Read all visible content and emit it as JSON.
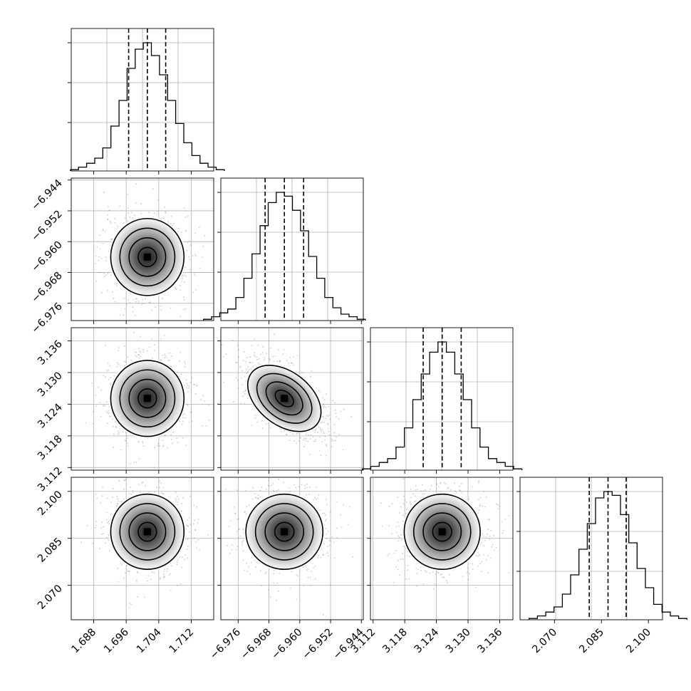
{
  "chart_data": {
    "type": "corner",
    "title": "",
    "parameters": [
      {
        "index": 0,
        "ticks": [
          1.688,
          1.696,
          1.704,
          1.712
        ],
        "tick_labels": [
          "1.688",
          "1.696",
          "1.704",
          "1.712"
        ],
        "range": [
          1.6825,
          1.7175
        ],
        "quantiles": [
          1.6966,
          1.7012,
          1.7057
        ],
        "sigma": 0.0045
      },
      {
        "index": 1,
        "ticks": [
          -6.976,
          -6.968,
          -6.96,
          -6.952,
          -6.944
        ],
        "tick_labels": [
          "−6.976",
          "−6.968",
          "−6.960",
          "−6.952",
          "−6.944"
        ],
        "range": [
          -6.9805,
          -6.9435
        ],
        "quantiles": [
          -6.969,
          -6.964,
          -6.959
        ],
        "sigma": 0.005
      },
      {
        "index": 2,
        "ticks": [
          3.112,
          3.118,
          3.124,
          3.13,
          3.136
        ],
        "tick_labels": [
          "3.112",
          "3.118",
          "3.124",
          "3.130",
          "3.136"
        ],
        "range": [
          3.1115,
          3.1385
        ],
        "quantiles": [
          3.1215,
          3.1251,
          3.1287
        ],
        "sigma": 0.0036
      },
      {
        "index": 3,
        "ticks": [
          2.07,
          2.085,
          2.1
        ],
        "tick_labels": [
          "2.070",
          "2.085",
          "2.100"
        ],
        "range": [
          2.059,
          2.1045
        ],
        "quantiles": [
          2.0811,
          2.0871,
          2.0929
        ],
        "sigma": 0.006
      }
    ],
    "histograms": [
      {
        "param": 0,
        "counts": [
          1,
          3,
          6,
          10,
          18,
          35,
          55,
          80,
          95,
          100,
          90,
          75,
          55,
          37,
          22,
          12,
          6,
          3,
          1
        ]
      },
      {
        "param": 1,
        "counts": [
          1,
          3,
          6,
          9,
          18,
          33,
          52,
          74,
          92,
          100,
          97,
          86,
          70,
          50,
          33,
          18,
          10,
          5,
          3,
          1
        ]
      },
      {
        "param": 2,
        "counts": [
          1,
          3,
          6,
          9,
          18,
          33,
          55,
          75,
          92,
          100,
          92,
          75,
          55,
          33,
          18,
          9,
          6,
          3,
          1
        ]
      },
      {
        "param": 3,
        "counts": [
          1,
          3,
          6,
          10,
          20,
          35,
          55,
          75,
          95,
          100,
          97,
          82,
          60,
          40,
          25,
          12,
          6,
          3,
          1
        ]
      }
    ],
    "pairs": [
      {
        "x": 0,
        "y": 1,
        "correlation": 0.0
      },
      {
        "x": 0,
        "y": 2,
        "correlation": 0.0
      },
      {
        "x": 1,
        "y": 2,
        "correlation": -0.6
      },
      {
        "x": 0,
        "y": 3,
        "correlation": 0.0
      },
      {
        "x": 1,
        "y": 3,
        "correlation": 0.0
      },
      {
        "x": 2,
        "y": 3,
        "correlation": 0.0
      }
    ],
    "contour_levels_sigma": [
      0.5,
      1.0,
      1.5,
      2.0
    ],
    "grid": true,
    "legend": "none"
  },
  "colors": {
    "ink": "#000000",
    "grid": "#b0b0b0",
    "scatter": "#888888"
  }
}
